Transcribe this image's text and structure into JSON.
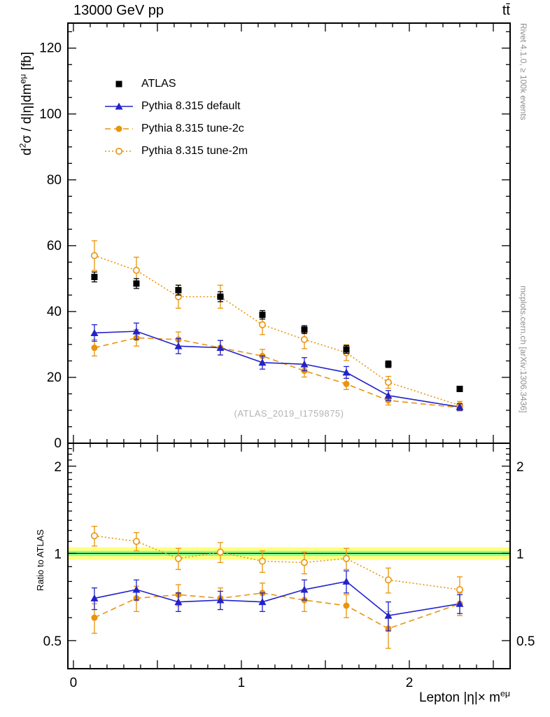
{
  "chart_data": {
    "type": "line",
    "title": "13000 GeV pp",
    "title_right": "tt̄",
    "xlabel": "Lepton |η|× m^{eμ}",
    "ylabel": "d^{2}σ / d|η|dm^{eμ} [fb]",
    "ratio_label": "Ratio to ATLAS",
    "watermark": "(ATLAS_2019_I1759875)",
    "side_note_top": "Rivet 4.1.0, ≥ 100k events",
    "side_note_bottom": "mcplots.cern.ch [arXiv:1306.3436]",
    "xlim": [
      -0.033,
      2.6
    ],
    "ylim": [
      0,
      127.6
    ],
    "ratio_ylim": [
      0.4,
      2.4
    ],
    "x_ticks_labeled": [
      0,
      1,
      2
    ],
    "y_ticks": [
      0,
      20,
      40,
      60,
      80,
      100,
      120
    ],
    "ratio_ticks": [
      0.5,
      1,
      2
    ],
    "band": {
      "yellow": [
        0.95,
        1.05
      ],
      "green": [
        0.98,
        1.02
      ],
      "yellow_color": "#ffff80",
      "green_color": "#8cff8c"
    },
    "x": [
      0.125,
      0.375,
      0.625,
      0.875,
      1.125,
      1.375,
      1.625,
      1.875,
      2.3
    ],
    "series": [
      {
        "name": "ATLAS",
        "marker": "square",
        "line": "none",
        "color": "#000000",
        "values": [
          50.5,
          48.5,
          46.5,
          44.5,
          39,
          34.5,
          28.5,
          24,
          16.5
        ],
        "errors": [
          1.5,
          1.5,
          1.5,
          1.5,
          1.3,
          1.2,
          1.2,
          1.0,
          0.8
        ]
      },
      {
        "name": "Pythia 8.315 default",
        "marker": "triangle",
        "line": "solid",
        "color": "#2222cc",
        "values": [
          33.5,
          34,
          29.5,
          29,
          24.5,
          24,
          21.5,
          14.5,
          11
        ],
        "errors": [
          2.5,
          2.5,
          2.3,
          2.2,
          2.0,
          2.0,
          1.8,
          1.5,
          1.0
        ],
        "ratio": [
          0.7,
          0.75,
          0.68,
          0.69,
          0.68,
          0.75,
          0.8,
          0.61,
          0.67
        ],
        "ratio_errors": [
          0.06,
          0.06,
          0.05,
          0.05,
          0.05,
          0.06,
          0.07,
          0.07,
          0.05
        ]
      },
      {
        "name": "Pythia 8.315 tune-2c",
        "marker": "circle",
        "line": "dashed",
        "color": "#e8940c",
        "values": [
          29,
          32,
          31.5,
          29,
          26.5,
          22,
          18,
          13,
          10.8
        ],
        "errors": [
          2.5,
          2.5,
          2.3,
          2.2,
          2.0,
          1.9,
          1.7,
          1.4,
          1.0
        ],
        "ratio": [
          0.6,
          0.7,
          0.72,
          0.7,
          0.73,
          0.69,
          0.66,
          0.55,
          0.67
        ],
        "ratio_errors": [
          0.07,
          0.07,
          0.06,
          0.06,
          0.06,
          0.06,
          0.06,
          0.08,
          0.06
        ]
      },
      {
        "name": "Pythia 8.315 tune-2m",
        "marker": "circle-open",
        "line": "dotted",
        "color": "#e8940c",
        "values": [
          57,
          52.5,
          44.5,
          44.5,
          36,
          31.5,
          27.5,
          18.5,
          11.5
        ],
        "errors": [
          4.5,
          4.0,
          3.5,
          3.5,
          3.0,
          2.8,
          2.4,
          1.8,
          1.2
        ],
        "ratio": [
          1.15,
          1.1,
          0.96,
          1.01,
          0.94,
          0.93,
          0.96,
          0.81,
          0.75
        ],
        "ratio_errors": [
          0.09,
          0.08,
          0.08,
          0.08,
          0.08,
          0.08,
          0.08,
          0.08,
          0.08
        ]
      }
    ]
  }
}
